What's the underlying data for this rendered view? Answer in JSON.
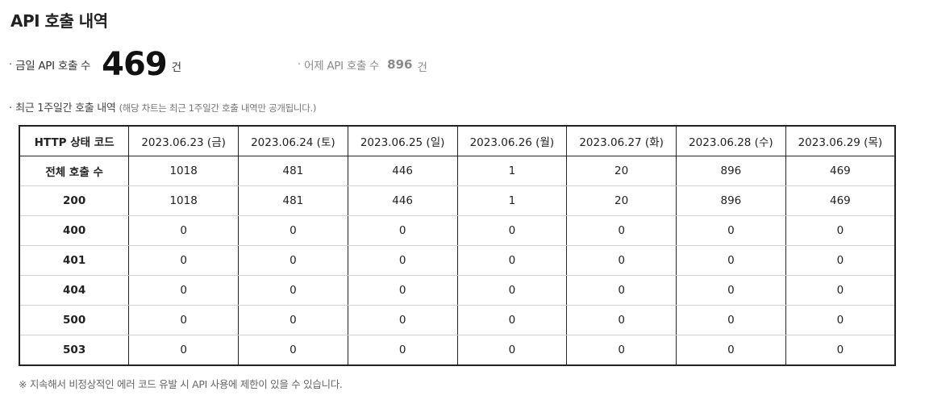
{
  "page": {
    "title": "API 호출 내역"
  },
  "stats": {
    "bullet": "·",
    "today": {
      "label": "금일 API 호출 수",
      "value": "469",
      "unit": "건"
    },
    "yesterday": {
      "label": "어제 API 호출 수",
      "value": "896",
      "unit": "건"
    }
  },
  "section": {
    "label": "최근 1주일간 호출 내역",
    "note": "(해당 차트는 최근 1주일간 호출 내역만 공개됩니다.)"
  },
  "table": {
    "header_first": "HTTP 상태 코드",
    "dates": [
      "2023.06.23 (금)",
      "2023.06.24 (토)",
      "2023.06.25 (일)",
      "2023.06.26 (월)",
      "2023.06.27 (화)",
      "2023.06.28 (수)",
      "2023.06.29 (목)"
    ],
    "rows": [
      {
        "label": "전체 호출 수",
        "values": [
          "1018",
          "481",
          "446",
          "1",
          "20",
          "896",
          "469"
        ]
      },
      {
        "label": "200",
        "values": [
          "1018",
          "481",
          "446",
          "1",
          "20",
          "896",
          "469"
        ]
      },
      {
        "label": "400",
        "values": [
          "0",
          "0",
          "0",
          "0",
          "0",
          "0",
          "0"
        ]
      },
      {
        "label": "401",
        "values": [
          "0",
          "0",
          "0",
          "0",
          "0",
          "0",
          "0"
        ]
      },
      {
        "label": "404",
        "values": [
          "0",
          "0",
          "0",
          "0",
          "0",
          "0",
          "0"
        ]
      },
      {
        "label": "500",
        "values": [
          "0",
          "0",
          "0",
          "0",
          "0",
          "0",
          "0"
        ]
      },
      {
        "label": "503",
        "values": [
          "0",
          "0",
          "0",
          "0",
          "0",
          "0",
          "0"
        ]
      }
    ]
  },
  "footnote": "※ 지속해서 비정상적인 에러 코드 유발 시 API 사용에 제한이 있을 수 있습니다."
}
